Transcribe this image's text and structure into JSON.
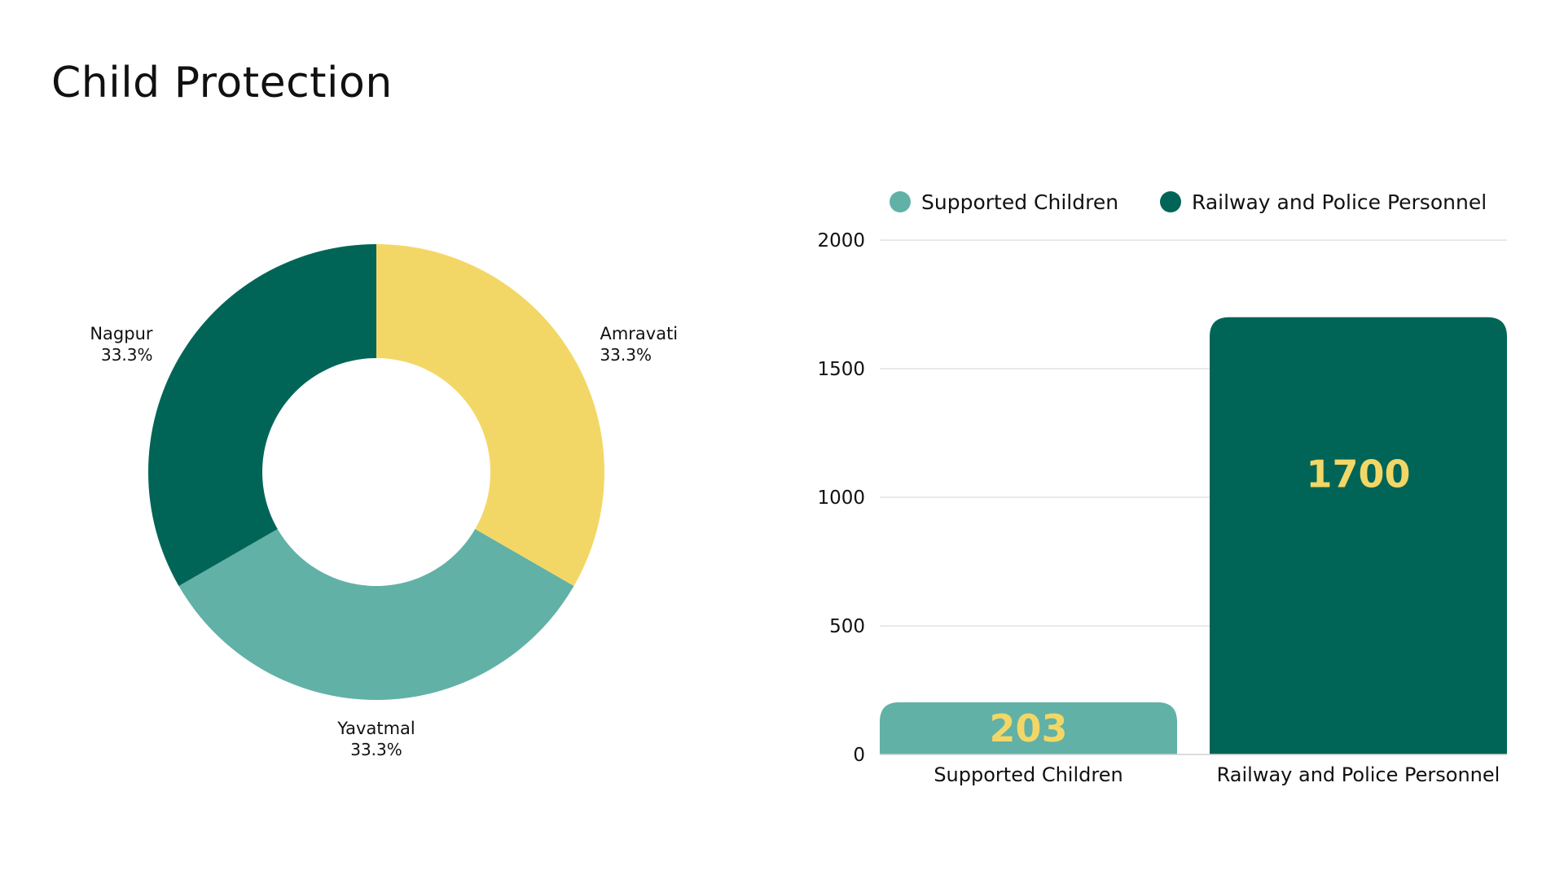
{
  "page": {
    "title": "Child Protection"
  },
  "chart_data": [
    {
      "type": "pie",
      "variant": "donut",
      "labels": [
        "Amravati",
        "Yavatmal",
        "Nagpur"
      ],
      "values": [
        33.3,
        33.3,
        33.3
      ],
      "value_labels": [
        "33.3%",
        "33.3%",
        "33.3%"
      ],
      "colors": [
        "#F3D766",
        "#61B1A6",
        "#006557"
      ]
    },
    {
      "type": "bar",
      "categories": [
        "Supported Children",
        "Railway and Police Personnel"
      ],
      "values": [
        203,
        1700
      ],
      "value_labels": [
        "203",
        "1700"
      ],
      "legend": {
        "position": "top",
        "entries": [
          "Supported Children",
          "Railway and Police Personnel"
        ]
      },
      "colors": [
        "#61B1A6",
        "#006557"
      ],
      "value_label_color": "#F3D766",
      "ylim": [
        0,
        2000
      ],
      "yticks": [
        0,
        500,
        1000,
        1500,
        2000
      ],
      "grid": true
    }
  ]
}
